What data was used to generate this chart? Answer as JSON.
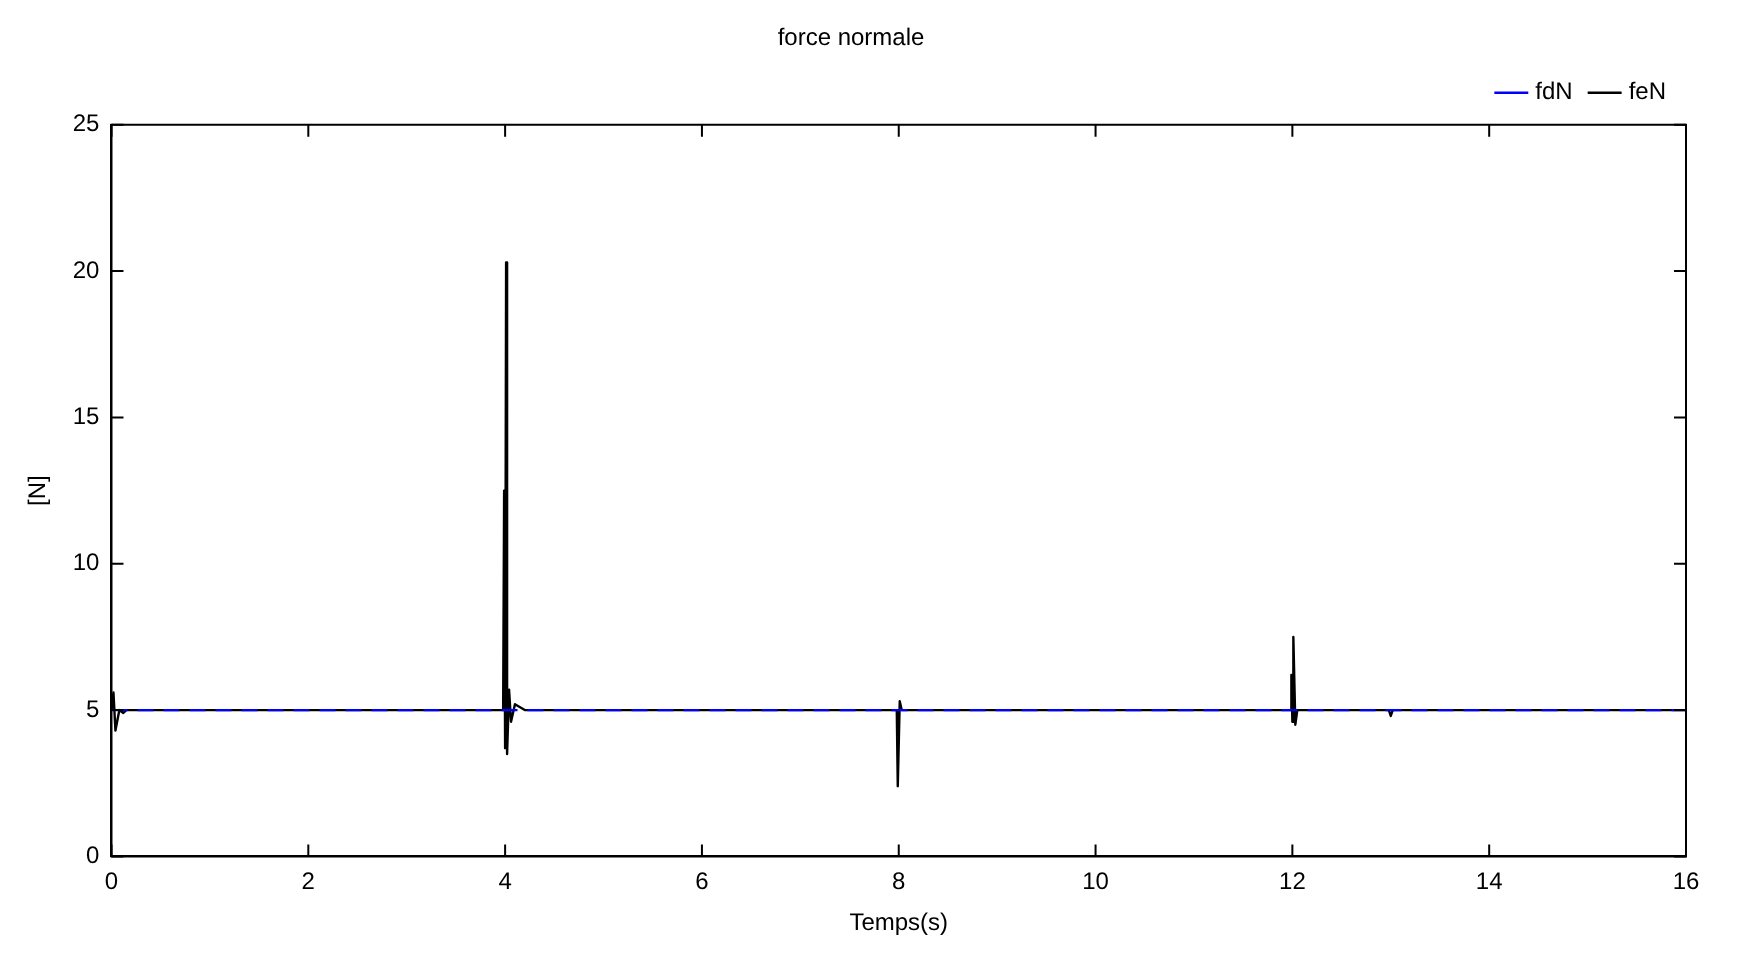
{
  "chart_data": {
    "type": "line",
    "title": "force normale",
    "xlabel": "Temps(s)",
    "ylabel": "[N]",
    "xlim": [
      0,
      16
    ],
    "xticks": [
      0,
      2,
      4,
      6,
      8,
      10,
      12,
      14,
      16
    ],
    "ylim": [
      0,
      25
    ],
    "yticks": [
      0,
      5,
      10,
      15,
      20,
      25
    ],
    "legend": "top right",
    "grid": false,
    "marker": "none",
    "series": [
      {
        "name": "fdN",
        "color": "#0000ff",
        "line_style": "dashed",
        "x": [
          0,
          16
        ],
        "values": [
          5,
          5
        ]
      },
      {
        "name": "feN",
        "color": "#000000",
        "line_style": "solid",
        "x": [
          0,
          0.02,
          0.04,
          0.08,
          0.12,
          0.15,
          3.98,
          3.99,
          4.0,
          4.01,
          4.02,
          4.04,
          4.06,
          4.1,
          4.2,
          5.3,
          7.98,
          7.99,
          8.01,
          8.03,
          11.98,
          11.99,
          12.0,
          12.01,
          12.03,
          12.05,
          12.98,
          13.0,
          13.02,
          16
        ],
        "values": [
          5,
          5.6,
          4.3,
          5.0,
          4.9,
          5,
          5,
          12.5,
          3.7,
          20.3,
          3.5,
          5.7,
          4.6,
          5.2,
          5,
          5,
          5,
          2.4,
          5.3,
          5,
          5,
          6.2,
          4.6,
          7.5,
          4.5,
          5,
          5,
          4.8,
          5,
          5
        ]
      }
    ]
  }
}
